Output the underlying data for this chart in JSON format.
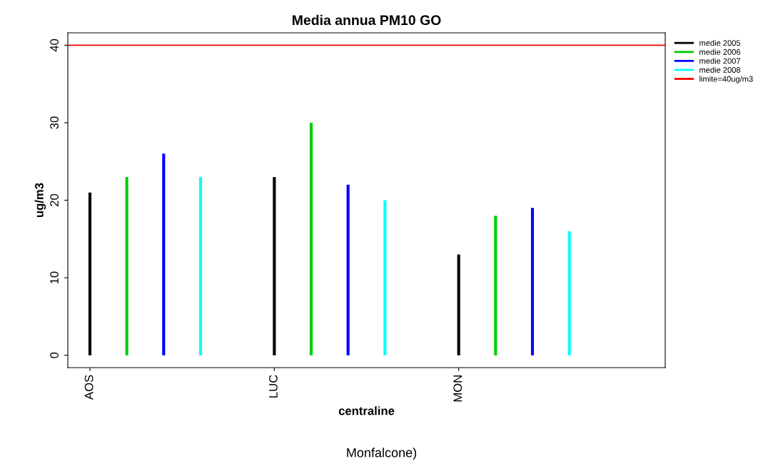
{
  "chart_data": {
    "type": "bar",
    "title": "Media annua PM10 GO",
    "xlabel": "centraline",
    "ylabel": "ug/m3",
    "categories": [
      "AOS",
      null,
      null,
      null,
      null,
      "LUC",
      null,
      null,
      null,
      null,
      "MON",
      null,
      null,
      null
    ],
    "series": [
      {
        "name": "medie 2005",
        "color": "#000000",
        "values": [
          21,
          null,
          null,
          null,
          null,
          23,
          null,
          null,
          null,
          null,
          13,
          null,
          null,
          null
        ]
      },
      {
        "name": "medie 2006",
        "color": "#00cd00",
        "values": [
          null,
          23,
          null,
          null,
          null,
          null,
          30,
          null,
          null,
          null,
          null,
          18,
          null,
          null
        ]
      },
      {
        "name": "medie 2007",
        "color": "#0000ff",
        "values": [
          null,
          null,
          26,
          null,
          null,
          null,
          null,
          22,
          null,
          null,
          null,
          null,
          19,
          null
        ]
      },
      {
        "name": "medie 2008",
        "color": "#00ffff",
        "values": [
          null,
          null,
          null,
          23,
          null,
          null,
          null,
          null,
          20,
          null,
          null,
          null,
          null,
          16
        ]
      }
    ],
    "ylim": [
      -1.6,
      41.6
    ],
    "yticks": [
      0,
      10,
      20,
      30,
      40
    ],
    "ref_lines": [
      {
        "axis": "y",
        "value": 40,
        "label": "limite=40ug/m3",
        "color": "#ff0000"
      }
    ],
    "legend": "top right",
    "grid": false,
    "annotations": [
      "Monfalcone)"
    ]
  }
}
